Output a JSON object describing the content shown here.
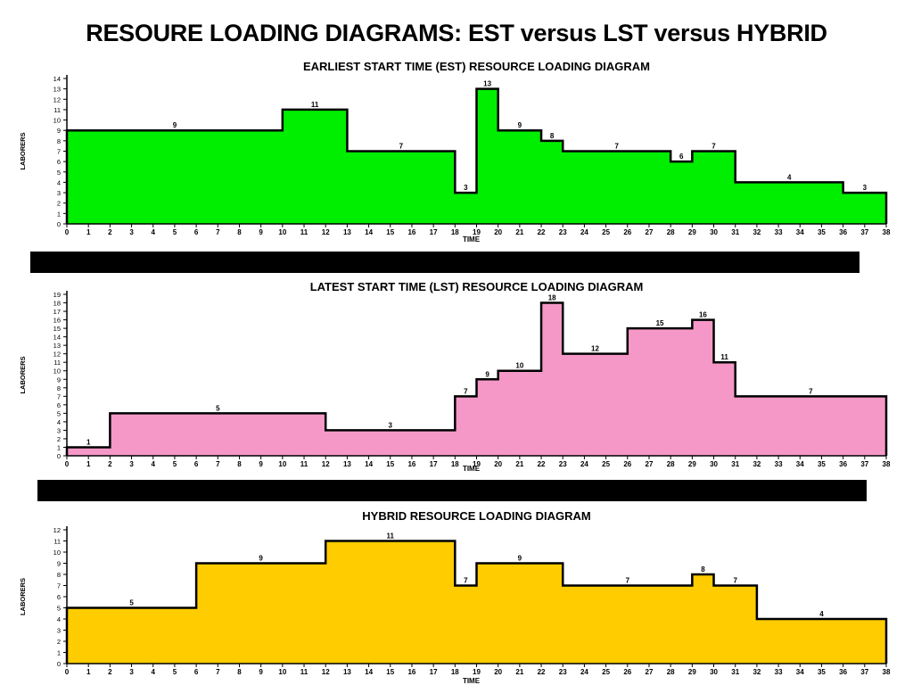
{
  "page": {
    "title": "RESOURE LOADING DIAGRAMS:  EST versus LST versus HYBRID"
  },
  "chart_data": [
    {
      "type": "area",
      "title": "EARLIEST START TIME (EST) RESOURCE LOADING DIAGRAM",
      "xlabel": "TIME",
      "ylabel": "LABORERS",
      "xlim": [
        0,
        38
      ],
      "ylim": [
        0,
        14
      ],
      "x_ticks": [
        0,
        1,
        2,
        3,
        4,
        5,
        6,
        7,
        8,
        9,
        10,
        11,
        12,
        13,
        14,
        15,
        16,
        17,
        18,
        19,
        20,
        21,
        22,
        23,
        24,
        25,
        26,
        27,
        28,
        29,
        30,
        31,
        32,
        33,
        34,
        35,
        36,
        37,
        38
      ],
      "y_ticks": [
        0,
        1,
        2,
        3,
        4,
        5,
        6,
        7,
        8,
        9,
        10,
        11,
        12,
        13,
        14
      ],
      "fill_color": "#00ee00",
      "segments": [
        {
          "start": 0,
          "end": 10,
          "value": 9
        },
        {
          "start": 10,
          "end": 13,
          "value": 11
        },
        {
          "start": 13,
          "end": 18,
          "value": 7
        },
        {
          "start": 18,
          "end": 19,
          "value": 3
        },
        {
          "start": 19,
          "end": 20,
          "value": 13
        },
        {
          "start": 20,
          "end": 22,
          "value": 9
        },
        {
          "start": 22,
          "end": 23,
          "value": 8
        },
        {
          "start": 23,
          "end": 28,
          "value": 7
        },
        {
          "start": 28,
          "end": 29,
          "value": 6
        },
        {
          "start": 29,
          "end": 31,
          "value": 7
        },
        {
          "start": 31,
          "end": 36,
          "value": 4
        },
        {
          "start": 36,
          "end": 38,
          "value": 3
        }
      ]
    },
    {
      "type": "area",
      "title": "LATEST START TIME (LST) RESOURCE LOADING DIAGRAM",
      "xlabel": "TIME",
      "ylabel": "LABORERS",
      "xlim": [
        0,
        38
      ],
      "ylim": [
        0,
        19
      ],
      "x_ticks": [
        0,
        1,
        2,
        3,
        4,
        5,
        6,
        7,
        8,
        9,
        10,
        11,
        12,
        13,
        14,
        15,
        16,
        17,
        18,
        19,
        20,
        21,
        22,
        23,
        24,
        25,
        26,
        27,
        28,
        29,
        30,
        31,
        32,
        33,
        34,
        35,
        36,
        37,
        38
      ],
      "y_ticks": [
        0,
        1,
        2,
        3,
        4,
        5,
        6,
        7,
        8,
        9,
        10,
        11,
        12,
        13,
        14,
        15,
        16,
        17,
        18,
        19
      ],
      "fill_color": "#f598c8",
      "segments": [
        {
          "start": 0,
          "end": 2,
          "value": 1
        },
        {
          "start": 2,
          "end": 12,
          "value": 5
        },
        {
          "start": 12,
          "end": 18,
          "value": 3
        },
        {
          "start": 18,
          "end": 19,
          "value": 7
        },
        {
          "start": 19,
          "end": 20,
          "value": 9
        },
        {
          "start": 20,
          "end": 22,
          "value": 10
        },
        {
          "start": 22,
          "end": 23,
          "value": 18
        },
        {
          "start": 23,
          "end": 26,
          "value": 12
        },
        {
          "start": 26,
          "end": 29,
          "value": 15
        },
        {
          "start": 29,
          "end": 30,
          "value": 16
        },
        {
          "start": 30,
          "end": 31,
          "value": 11
        },
        {
          "start": 31,
          "end": 38,
          "value": 7
        }
      ]
    },
    {
      "type": "area",
      "title": "HYBRID RESOURCE LOADING DIAGRAM",
      "xlabel": "TIME",
      "ylabel": "LABORERS",
      "xlim": [
        0,
        38
      ],
      "ylim": [
        0,
        12
      ],
      "x_ticks": [
        0,
        1,
        2,
        3,
        4,
        5,
        6,
        7,
        8,
        9,
        10,
        11,
        12,
        13,
        14,
        15,
        16,
        17,
        18,
        19,
        20,
        21,
        22,
        23,
        24,
        25,
        26,
        27,
        28,
        29,
        30,
        31,
        32,
        33,
        34,
        35,
        36,
        37,
        38
      ],
      "y_ticks": [
        0,
        1,
        2,
        3,
        4,
        5,
        6,
        7,
        8,
        9,
        10,
        11,
        12
      ],
      "fill_color": "#ffcc00",
      "segments": [
        {
          "start": 0,
          "end": 6,
          "value": 5
        },
        {
          "start": 6,
          "end": 12,
          "value": 9
        },
        {
          "start": 12,
          "end": 18,
          "value": 11
        },
        {
          "start": 18,
          "end": 19,
          "value": 7
        },
        {
          "start": 19,
          "end": 23,
          "value": 9
        },
        {
          "start": 23,
          "end": 29,
          "value": 7
        },
        {
          "start": 29,
          "end": 30,
          "value": 8
        },
        {
          "start": 30,
          "end": 32,
          "value": 7
        },
        {
          "start": 32,
          "end": 38,
          "value": 4
        }
      ]
    }
  ]
}
